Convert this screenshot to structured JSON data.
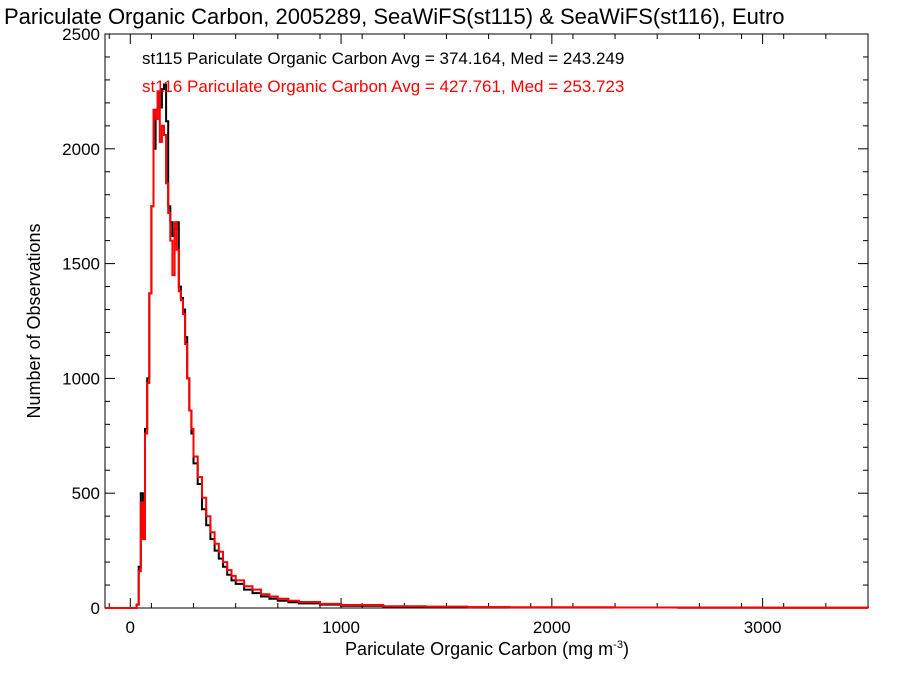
{
  "chart_data": {
    "type": "line",
    "title": "Pariculate Organic Carbon, 2005289, SeaWiFS(st115) & SeaWiFS(st116), Eutro",
    "xlabel": "Pariculate Organic Carbon (mg m",
    "xlabel_superscript": "-3",
    "xlabel_suffix": ")",
    "ylabel": "Number of Observations",
    "xlim": [
      -120,
      3500
    ],
    "ylim": [
      0,
      2500
    ],
    "x_ticks": [
      0,
      1000,
      2000,
      3000
    ],
    "y_ticks": [
      0,
      500,
      1000,
      1500,
      2000,
      2500
    ],
    "series": [
      {
        "name": "st115",
        "color": "#000000",
        "legend": "st115 Pariculate Organic Carbon Avg = 374.164, Med = 243.249",
        "x": [
          0,
          20,
          30,
          40,
          50,
          60,
          70,
          80,
          90,
          100,
          110,
          120,
          130,
          140,
          150,
          160,
          170,
          180,
          190,
          200,
          210,
          220,
          230,
          240,
          250,
          260,
          270,
          280,
          290,
          300,
          320,
          340,
          360,
          380,
          400,
          420,
          440,
          460,
          480,
          500,
          540,
          580,
          620,
          660,
          700,
          750,
          800,
          900,
          1000,
          1200,
          1400,
          1600,
          1800,
          2000,
          2300,
          2600,
          3000,
          3300,
          3500
        ],
        "y": [
          0,
          0,
          15,
          180,
          500,
          310,
          780,
          1000,
          1370,
          1750,
          2000,
          2170,
          2250,
          2180,
          2260,
          2280,
          2120,
          1750,
          1680,
          1620,
          1650,
          1680,
          1400,
          1350,
          1300,
          1180,
          1000,
          860,
          760,
          630,
          540,
          430,
          360,
          300,
          250,
          215,
          180,
          145,
          120,
          105,
          80,
          65,
          50,
          40,
          32,
          25,
          20,
          15,
          10,
          6,
          4,
          3,
          2,
          2,
          2,
          1,
          1,
          1,
          0
        ]
      },
      {
        "name": "st116",
        "color": "#ff0000",
        "legend": "st116 Pariculate Organic Carbon Avg = 427.761, Med = 253.723",
        "x": [
          0,
          20,
          30,
          40,
          50,
          60,
          70,
          80,
          90,
          100,
          110,
          120,
          130,
          140,
          150,
          160,
          170,
          180,
          190,
          200,
          210,
          220,
          230,
          240,
          250,
          260,
          270,
          280,
          290,
          300,
          320,
          340,
          360,
          380,
          400,
          420,
          440,
          460,
          480,
          500,
          540,
          580,
          620,
          660,
          700,
          750,
          800,
          900,
          1000,
          1200,
          1400,
          1600,
          1800,
          2000,
          2300,
          2600,
          3000,
          3300,
          3500
        ],
        "y": [
          0,
          0,
          15,
          160,
          460,
          300,
          760,
          980,
          1370,
          1750,
          2170,
          2130,
          2250,
          2030,
          2100,
          2060,
          1850,
          1720,
          1600,
          1450,
          1680,
          1560,
          1380,
          1340,
          1280,
          1150,
          1000,
          860,
          780,
          660,
          570,
          480,
          400,
          330,
          280,
          245,
          200,
          165,
          140,
          120,
          95,
          80,
          60,
          50,
          40,
          32,
          26,
          18,
          13,
          8,
          6,
          4,
          3,
          3,
          2,
          2,
          1,
          1,
          0
        ]
      }
    ],
    "grid": false,
    "legend_placement": "top-left"
  }
}
